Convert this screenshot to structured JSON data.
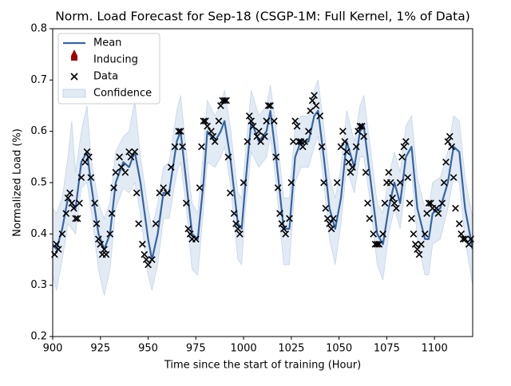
{
  "chart_data": {
    "type": "line",
    "title": "Norm. Load Forecast for Sep-18 (CSGP-1M: Full Kernel, 1% of Data)",
    "xlabel": "Time since the start of training (Hour)",
    "ylabel": "Normalized Load (%)",
    "xlim": [
      900,
      1120
    ],
    "ylim": [
      0.2,
      0.8
    ],
    "xticks": [
      900,
      925,
      950,
      975,
      1000,
      1025,
      1050,
      1075,
      1100
    ],
    "yticks": [
      0.2,
      0.3,
      0.4,
      0.5,
      0.6,
      0.7,
      0.8
    ],
    "legend": "upper left",
    "mean": {
      "name": "Mean",
      "color": "#3465a4",
      "x": [
        900,
        902,
        905,
        908,
        910,
        912,
        915,
        918,
        920,
        924,
        927,
        930,
        933,
        937,
        940,
        943,
        946,
        950,
        952,
        955,
        958,
        961,
        965,
        967,
        970,
        973,
        976,
        979,
        981,
        985,
        988,
        990,
        993,
        997,
        999,
        1001,
        1004,
        1008,
        1012,
        1014,
        1017,
        1021,
        1024,
        1027,
        1030,
        1034,
        1037,
        1039,
        1042,
        1045,
        1048,
        1051,
        1054,
        1058,
        1061,
        1063,
        1066,
        1070,
        1073,
        1076,
        1079,
        1082,
        1085,
        1088,
        1091,
        1095,
        1097,
        1099,
        1103,
        1107,
        1110,
        1113,
        1116,
        1120
      ],
      "values": [
        0.38,
        0.37,
        0.41,
        0.47,
        0.46,
        0.45,
        0.54,
        0.56,
        0.5,
        0.4,
        0.37,
        0.4,
        0.5,
        0.54,
        0.53,
        0.56,
        0.5,
        0.39,
        0.35,
        0.4,
        0.48,
        0.48,
        0.58,
        0.6,
        0.5,
        0.4,
        0.39,
        0.5,
        0.6,
        0.58,
        0.6,
        0.62,
        0.55,
        0.42,
        0.41,
        0.5,
        0.62,
        0.58,
        0.6,
        0.64,
        0.55,
        0.41,
        0.41,
        0.55,
        0.58,
        0.58,
        0.63,
        0.64,
        0.55,
        0.45,
        0.41,
        0.47,
        0.58,
        0.53,
        0.6,
        0.61,
        0.52,
        0.4,
        0.38,
        0.45,
        0.5,
        0.46,
        0.55,
        0.57,
        0.45,
        0.39,
        0.39,
        0.44,
        0.45,
        0.5,
        0.57,
        0.56,
        0.45,
        0.37
      ]
    },
    "inducing": {
      "name": "Inducing",
      "color": "#a00000"
    },
    "confidence": {
      "name": "Confidence",
      "color": "#c5d5ea",
      "lower": [
        0.32,
        0.29,
        0.35,
        0.42,
        0.41,
        0.4,
        0.49,
        0.5,
        0.45,
        0.33,
        0.28,
        0.33,
        0.45,
        0.49,
        0.48,
        0.5,
        0.44,
        0.32,
        0.29,
        0.34,
        0.43,
        0.43,
        0.52,
        0.54,
        0.45,
        0.33,
        0.32,
        0.45,
        0.54,
        0.53,
        0.55,
        0.57,
        0.5,
        0.35,
        0.34,
        0.45,
        0.56,
        0.53,
        0.55,
        0.59,
        0.5,
        0.34,
        0.34,
        0.5,
        0.53,
        0.53,
        0.57,
        0.59,
        0.5,
        0.39,
        0.34,
        0.42,
        0.53,
        0.48,
        0.55,
        0.55,
        0.47,
        0.34,
        0.31,
        0.4,
        0.45,
        0.41,
        0.5,
        0.52,
        0.39,
        0.32,
        0.32,
        0.38,
        0.39,
        0.45,
        0.51,
        0.5,
        0.39,
        0.3
      ],
      "upper": [
        0.45,
        0.44,
        0.47,
        0.55,
        0.62,
        0.52,
        0.6,
        0.65,
        0.55,
        0.46,
        0.43,
        0.46,
        0.56,
        0.59,
        0.6,
        0.66,
        0.55,
        0.45,
        0.41,
        0.46,
        0.53,
        0.54,
        0.64,
        0.67,
        0.56,
        0.46,
        0.44,
        0.56,
        0.66,
        0.63,
        0.65,
        0.68,
        0.61,
        0.48,
        0.47,
        0.56,
        0.68,
        0.63,
        0.65,
        0.69,
        0.61,
        0.47,
        0.47,
        0.61,
        0.63,
        0.63,
        0.68,
        0.7,
        0.61,
        0.51,
        0.47,
        0.53,
        0.64,
        0.58,
        0.65,
        0.67,
        0.58,
        0.46,
        0.44,
        0.51,
        0.56,
        0.52,
        0.61,
        0.63,
        0.51,
        0.45,
        0.45,
        0.5,
        0.51,
        0.56,
        0.63,
        0.62,
        0.51,
        0.43
      ]
    },
    "data": {
      "name": "Data",
      "color": "#000000",
      "x": [
        901,
        902,
        903,
        905,
        907,
        908,
        909,
        910,
        911,
        912,
        913,
        914,
        915,
        917,
        918,
        919,
        920,
        922,
        923,
        924,
        925,
        926,
        927,
        928,
        930,
        931,
        932,
        933,
        935,
        936,
        938,
        940,
        941,
        943,
        944,
        945,
        947,
        948,
        949,
        950,
        952,
        954,
        956,
        958,
        960,
        962,
        964,
        966,
        967,
        968,
        970,
        971,
        972,
        973,
        975,
        977,
        978,
        979,
        980,
        981,
        983,
        984,
        985,
        987,
        988,
        989,
        990,
        991,
        992,
        993,
        995,
        996,
        997,
        998,
        1000,
        1002,
        1003,
        1004,
        1005,
        1007,
        1008,
        1009,
        1011,
        1012,
        1013,
        1014,
        1016,
        1017,
        1018,
        1019,
        1020,
        1021,
        1022,
        1024,
        1025,
        1026,
        1027,
        1028,
        1029,
        1030,
        1031,
        1032,
        1034,
        1035,
        1036,
        1037,
        1038,
        1040,
        1041,
        1042,
        1043,
        1044,
        1045,
        1046,
        1047,
        1049,
        1051,
        1052,
        1053,
        1054,
        1055,
        1056,
        1057,
        1059,
        1060,
        1061,
        1062,
        1063,
        1064,
        1065,
        1066,
        1068,
        1069,
        1070,
        1071,
        1073,
        1074,
        1075,
        1076,
        1077,
        1078,
        1079,
        1080,
        1082,
        1083,
        1084,
        1085,
        1086,
        1087,
        1088,
        1089,
        1090,
        1091,
        1092,
        1093,
        1095,
        1096,
        1097,
        1098,
        1099,
        1101,
        1102,
        1104,
        1105,
        1106,
        1107,
        1108,
        1109,
        1110,
        1111,
        1113,
        1114,
        1115,
        1116,
        1118,
        1119
      ],
      "values": [
        0.36,
        0.38,
        0.37,
        0.4,
        0.44,
        0.47,
        0.48,
        0.46,
        0.45,
        0.43,
        0.43,
        0.46,
        0.51,
        0.54,
        0.56,
        0.55,
        0.51,
        0.46,
        0.42,
        0.39,
        0.38,
        0.36,
        0.37,
        0.36,
        0.4,
        0.44,
        0.49,
        0.52,
        0.55,
        0.53,
        0.52,
        0.56,
        0.55,
        0.56,
        0.48,
        0.42,
        0.38,
        0.36,
        0.35,
        0.34,
        0.35,
        0.42,
        0.48,
        0.49,
        0.48,
        0.53,
        0.57,
        0.6,
        0.6,
        0.57,
        0.46,
        0.41,
        0.4,
        0.39,
        0.39,
        0.49,
        0.57,
        0.62,
        0.62,
        0.61,
        0.6,
        0.59,
        0.58,
        0.62,
        0.65,
        0.66,
        0.66,
        0.66,
        0.55,
        0.48,
        0.44,
        0.42,
        0.41,
        0.4,
        0.5,
        0.58,
        0.63,
        0.62,
        0.61,
        0.59,
        0.6,
        0.58,
        0.59,
        0.62,
        0.65,
        0.65,
        0.62,
        0.55,
        0.49,
        0.44,
        0.42,
        0.41,
        0.4,
        0.43,
        0.5,
        0.58,
        0.62,
        0.61,
        0.58,
        0.58,
        0.57,
        0.58,
        0.6,
        0.64,
        0.66,
        0.67,
        0.65,
        0.63,
        0.57,
        0.5,
        0.45,
        0.43,
        0.42,
        0.41,
        0.43,
        0.5,
        0.57,
        0.6,
        0.58,
        0.56,
        0.54,
        0.52,
        0.53,
        0.57,
        0.6,
        0.61,
        0.61,
        0.59,
        0.52,
        0.46,
        0.43,
        0.4,
        0.38,
        0.38,
        0.38,
        0.4,
        0.46,
        0.5,
        0.52,
        0.5,
        0.47,
        0.46,
        0.45,
        0.5,
        0.55,
        0.57,
        0.58,
        0.51,
        0.46,
        0.43,
        0.4,
        0.38,
        0.37,
        0.36,
        0.38,
        0.4,
        0.44,
        0.46,
        0.46,
        0.45,
        0.45,
        0.44,
        0.46,
        0.5,
        0.54,
        0.58,
        0.59,
        0.57,
        0.51,
        0.45,
        0.42,
        0.4,
        0.39,
        0.39,
        0.38,
        0.39
      ]
    }
  }
}
